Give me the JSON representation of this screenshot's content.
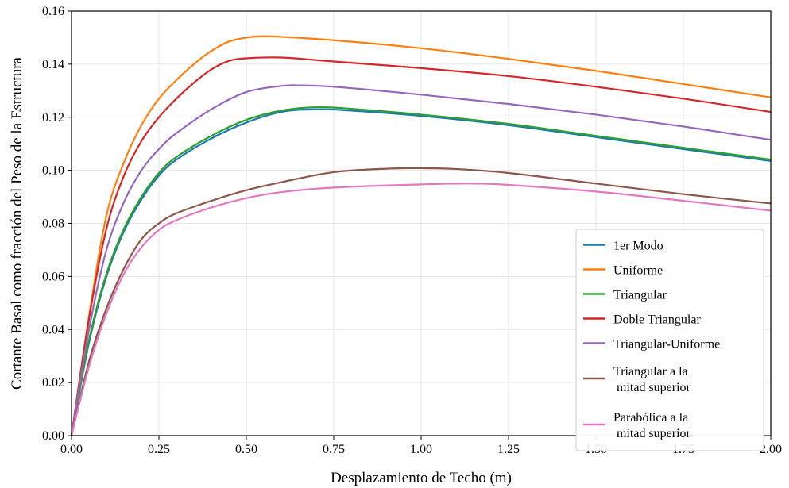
{
  "chart_data": {
    "type": "line",
    "title": "",
    "xlabel": "Desplazamiento de Techo (m)",
    "ylabel": "Cortante Basal como fracción del Peso de la Estructura",
    "xlim": [
      0,
      2.0
    ],
    "ylim": [
      0,
      0.16
    ],
    "xticks": [
      "0.00",
      "0.25",
      "0.50",
      "0.75",
      "1.00",
      "1.25",
      "1.50",
      "1.75",
      "2.00"
    ],
    "yticks": [
      "0.00",
      "0.02",
      "0.04",
      "0.06",
      "0.08",
      "0.10",
      "0.12",
      "0.14",
      "0.16"
    ],
    "grid": true,
    "legend_position": "lower-right",
    "series": [
      {
        "name": "1er Modo",
        "color": "#1f77b4",
        "points": [
          [
            0,
            0
          ],
          [
            0.05,
            0.035
          ],
          [
            0.1,
            0.06
          ],
          [
            0.15,
            0.077
          ],
          [
            0.2,
            0.089
          ],
          [
            0.25,
            0.098
          ],
          [
            0.3,
            0.104
          ],
          [
            0.4,
            0.112
          ],
          [
            0.5,
            0.118
          ],
          [
            0.6,
            0.122
          ],
          [
            0.7,
            0.123
          ],
          [
            0.8,
            0.1225
          ],
          [
            1.0,
            0.1205
          ],
          [
            1.25,
            0.117
          ],
          [
            1.5,
            0.1125
          ],
          [
            1.75,
            0.108
          ],
          [
            2.0,
            0.1035
          ]
        ]
      },
      {
        "name": "Uniforme",
        "color": "#ff7f0e",
        "points": [
          [
            0,
            0
          ],
          [
            0.05,
            0.045
          ],
          [
            0.1,
            0.083
          ],
          [
            0.15,
            0.103
          ],
          [
            0.2,
            0.117
          ],
          [
            0.25,
            0.127
          ],
          [
            0.3,
            0.134
          ],
          [
            0.35,
            0.14
          ],
          [
            0.4,
            0.145
          ],
          [
            0.45,
            0.1485
          ],
          [
            0.5,
            0.15
          ],
          [
            0.55,
            0.1505
          ],
          [
            0.6,
            0.1503
          ],
          [
            0.75,
            0.149
          ],
          [
            1.0,
            0.146
          ],
          [
            1.25,
            0.142
          ],
          [
            1.5,
            0.1375
          ],
          [
            1.75,
            0.1325
          ],
          [
            2.0,
            0.1275
          ]
        ]
      },
      {
        "name": "Triangular",
        "color": "#2ca02c",
        "points": [
          [
            0,
            0
          ],
          [
            0.05,
            0.036
          ],
          [
            0.1,
            0.061
          ],
          [
            0.15,
            0.078
          ],
          [
            0.2,
            0.09
          ],
          [
            0.25,
            0.099
          ],
          [
            0.3,
            0.105
          ],
          [
            0.4,
            0.113
          ],
          [
            0.5,
            0.119
          ],
          [
            0.6,
            0.1225
          ],
          [
            0.7,
            0.1238
          ],
          [
            0.8,
            0.1232
          ],
          [
            1.0,
            0.121
          ],
          [
            1.25,
            0.1175
          ],
          [
            1.5,
            0.113
          ],
          [
            1.75,
            0.1085
          ],
          [
            2.0,
            0.104
          ]
        ]
      },
      {
        "name": "Doble Triangular",
        "color": "#d62728",
        "points": [
          [
            0,
            0
          ],
          [
            0.05,
            0.044
          ],
          [
            0.1,
            0.078
          ],
          [
            0.15,
            0.098
          ],
          [
            0.2,
            0.111
          ],
          [
            0.25,
            0.12
          ],
          [
            0.3,
            0.127
          ],
          [
            0.35,
            0.133
          ],
          [
            0.4,
            0.138
          ],
          [
            0.45,
            0.1412
          ],
          [
            0.5,
            0.1422
          ],
          [
            0.6,
            0.1425
          ],
          [
            0.75,
            0.141
          ],
          [
            1.0,
            0.1385
          ],
          [
            1.25,
            0.1355
          ],
          [
            1.5,
            0.1315
          ],
          [
            1.75,
            0.127
          ],
          [
            2.0,
            0.122
          ]
        ]
      },
      {
        "name": "Triangular-Uniforme",
        "color": "#9467bd",
        "points": [
          [
            0,
            0
          ],
          [
            0.05,
            0.04
          ],
          [
            0.1,
            0.07
          ],
          [
            0.15,
            0.088
          ],
          [
            0.2,
            0.1
          ],
          [
            0.25,
            0.108
          ],
          [
            0.3,
            0.114
          ],
          [
            0.4,
            0.123
          ],
          [
            0.5,
            0.1295
          ],
          [
            0.6,
            0.1318
          ],
          [
            0.65,
            0.132
          ],
          [
            0.75,
            0.1315
          ],
          [
            1.0,
            0.1285
          ],
          [
            1.25,
            0.125
          ],
          [
            1.5,
            0.121
          ],
          [
            1.75,
            0.1165
          ],
          [
            2.0,
            0.1115
          ]
        ]
      },
      {
        "name": "Triangular a la\n mitad superior",
        "color": "#8c564b",
        "points": [
          [
            0,
            0
          ],
          [
            0.05,
            0.028
          ],
          [
            0.1,
            0.048
          ],
          [
            0.15,
            0.063
          ],
          [
            0.2,
            0.074
          ],
          [
            0.25,
            0.08
          ],
          [
            0.3,
            0.0838
          ],
          [
            0.4,
            0.0885
          ],
          [
            0.5,
            0.0925
          ],
          [
            0.6,
            0.0955
          ],
          [
            0.75,
            0.0993
          ],
          [
            0.9,
            0.1006
          ],
          [
            1.0,
            0.1008
          ],
          [
            1.1,
            0.1005
          ],
          [
            1.25,
            0.099
          ],
          [
            1.5,
            0.095
          ],
          [
            1.75,
            0.091
          ],
          [
            2.0,
            0.0875
          ]
        ]
      },
      {
        "name": "Parabólica a la\n mitad superior",
        "color": "#e377c2",
        "points": [
          [
            0,
            0
          ],
          [
            0.05,
            0.026
          ],
          [
            0.1,
            0.046
          ],
          [
            0.15,
            0.061
          ],
          [
            0.2,
            0.071
          ],
          [
            0.25,
            0.0775
          ],
          [
            0.3,
            0.0812
          ],
          [
            0.4,
            0.086
          ],
          [
            0.5,
            0.0895
          ],
          [
            0.6,
            0.0918
          ],
          [
            0.75,
            0.0935
          ],
          [
            1.0,
            0.0947
          ],
          [
            1.15,
            0.095
          ],
          [
            1.25,
            0.0945
          ],
          [
            1.5,
            0.092
          ],
          [
            1.75,
            0.0885
          ],
          [
            2.0,
            0.0848
          ]
        ]
      }
    ]
  }
}
